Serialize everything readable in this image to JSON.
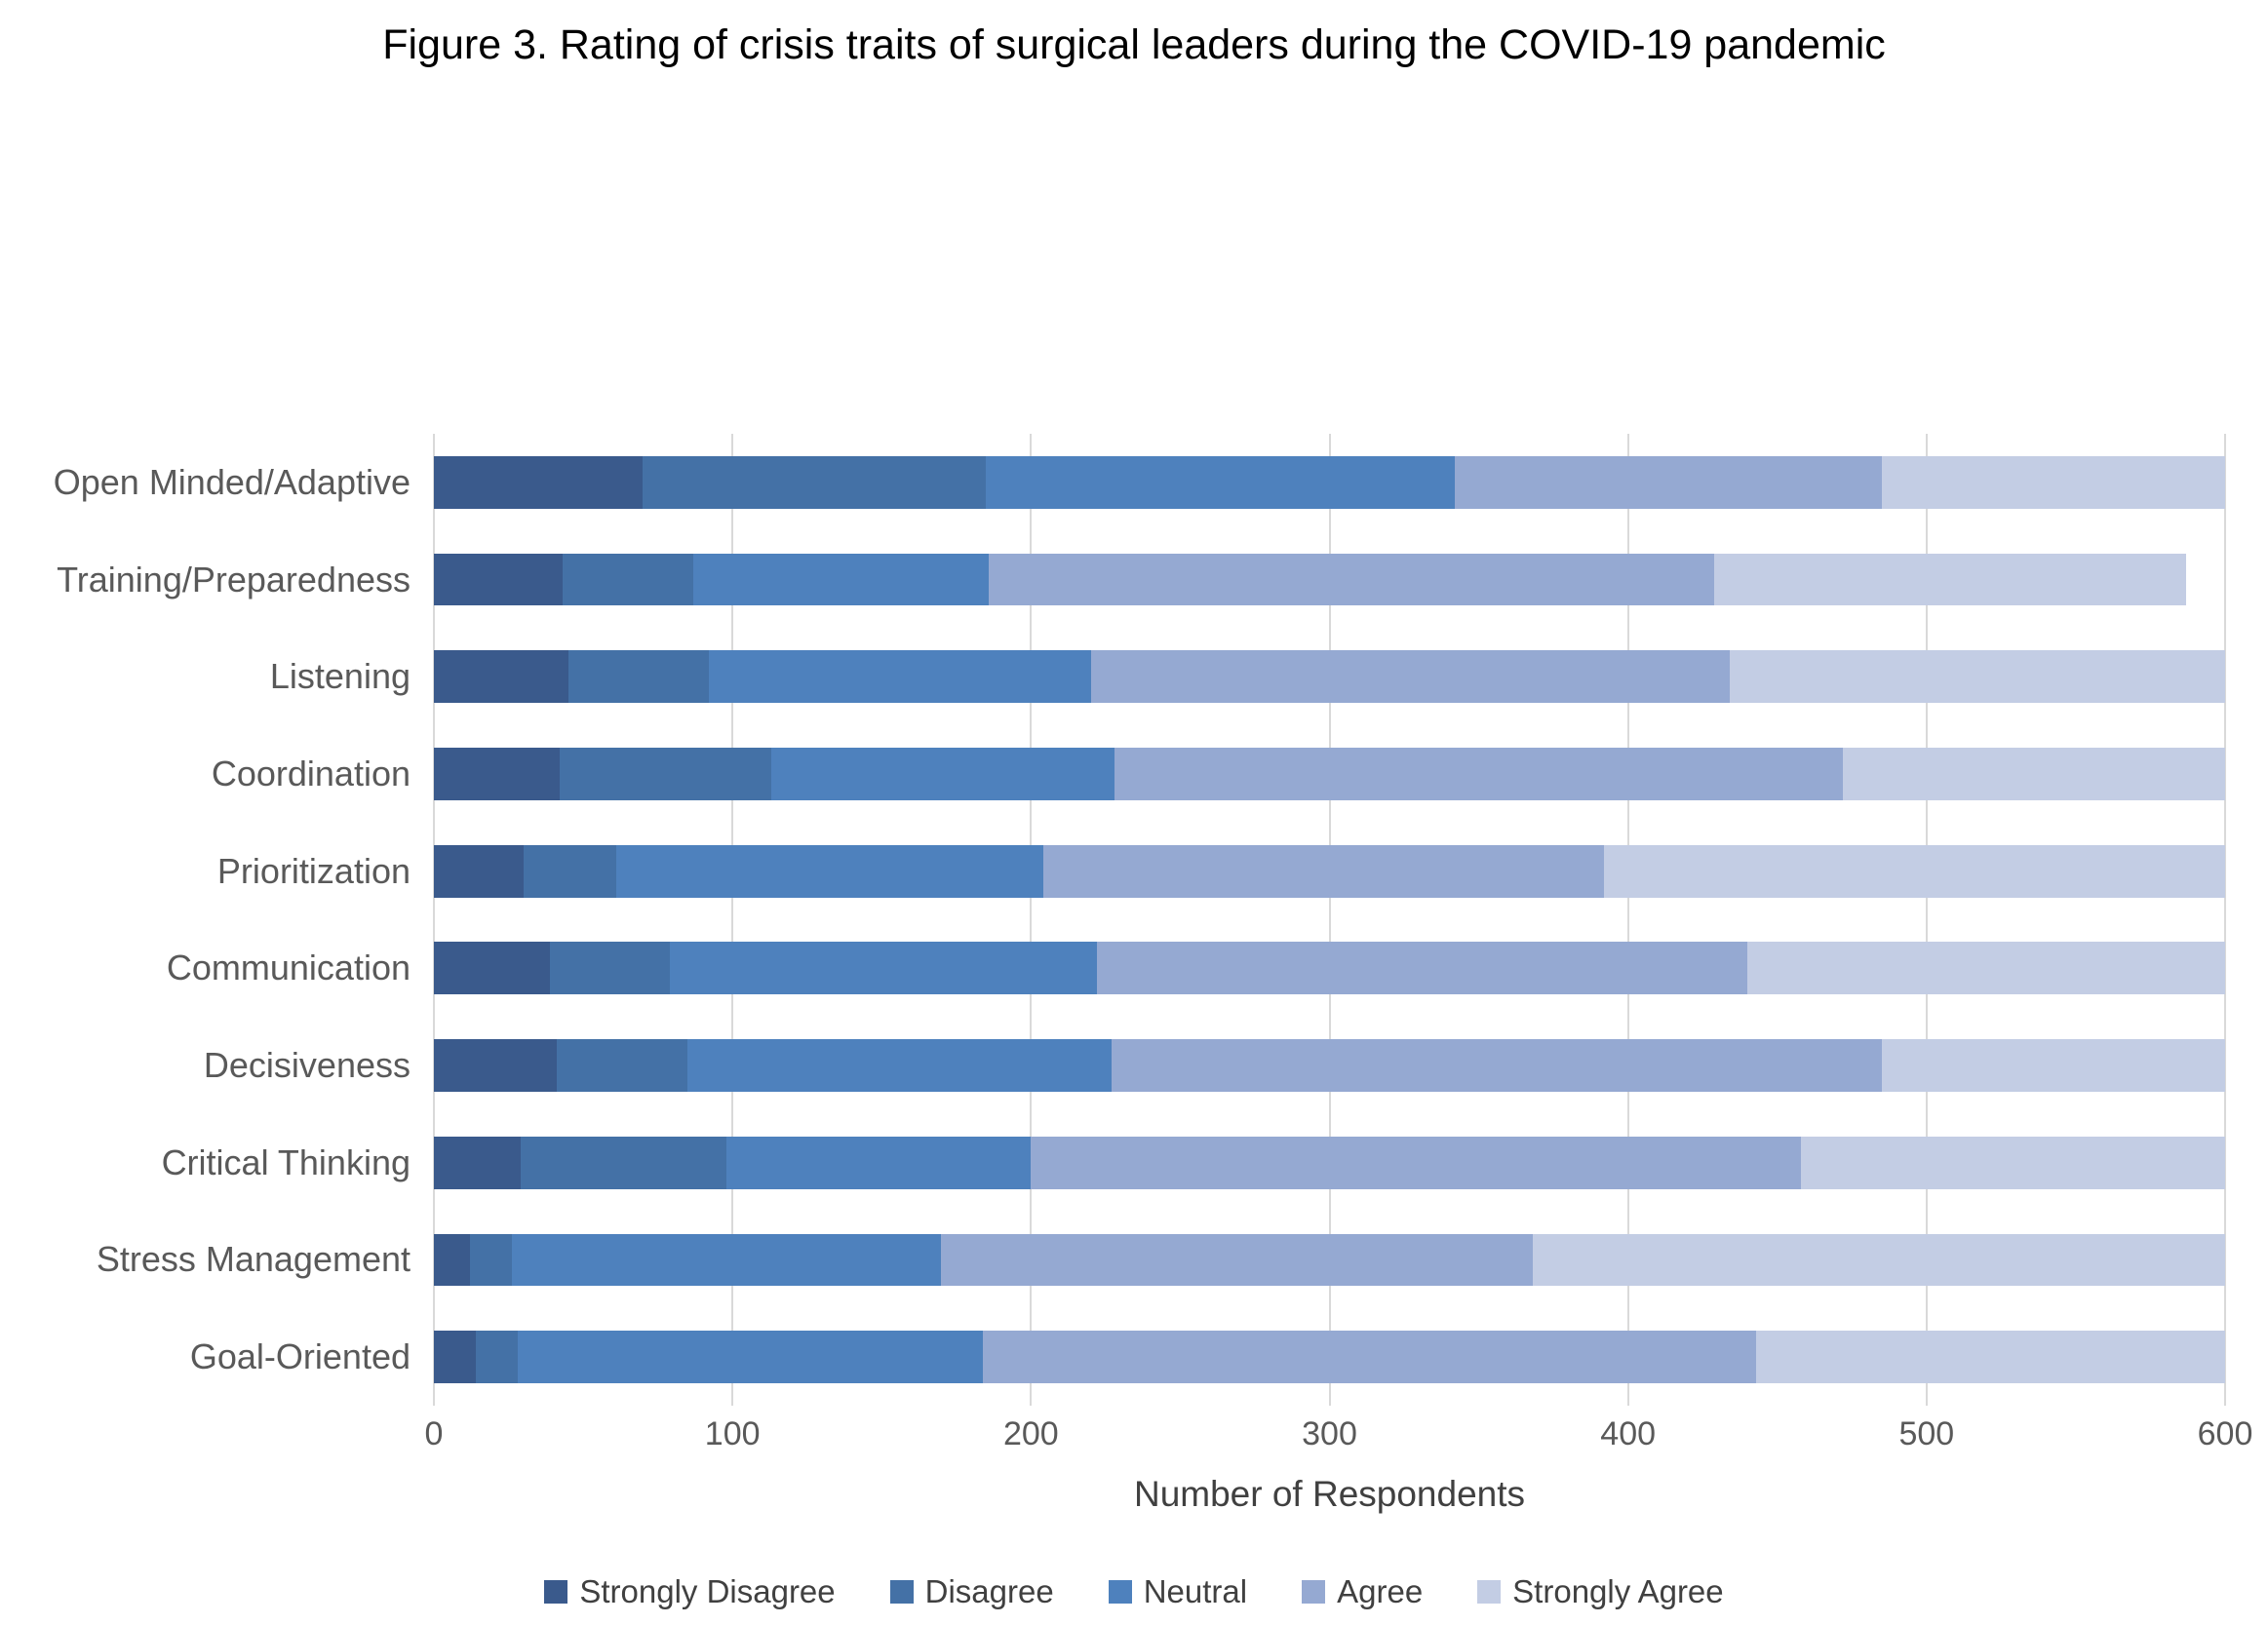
{
  "figure": {
    "title": "Figure 3. Rating of crisis traits of surgical leaders during the COVID-19 pandemic"
  },
  "chart_data": {
    "type": "bar",
    "orientation": "horizontal",
    "stacked": true,
    "title": "Figure 3. Rating of crisis traits of surgical leaders during the COVID-19 pandemic",
    "xlabel": "Number of Respondents",
    "ylabel": "",
    "xlim": [
      0,
      600
    ],
    "x_ticks": [
      0,
      100,
      200,
      300,
      400,
      500,
      600
    ],
    "grid": "vertical",
    "gridline_color": "#d9d9d9",
    "legend_position": "bottom",
    "categories": [
      "Open Minded/Adaptive",
      "Training/Preparedness",
      "Listening",
      "Coordination",
      "Prioritization",
      "Communication",
      "Decisiveness",
      "Critical Thinking",
      "Stress Management",
      "Goal-Oriented"
    ],
    "series": [
      {
        "name": "Strongly Disagree",
        "color": "#3a5a8c",
        "values": [
          70,
          43,
          45,
          42,
          30,
          39,
          41,
          29,
          12,
          14
        ]
      },
      {
        "name": "Disagree",
        "color": "#4471a6",
        "values": [
          115,
          44,
          47,
          71,
          31,
          40,
          44,
          69,
          14,
          14
        ]
      },
      {
        "name": "Neutral",
        "color": "#4e81bd",
        "values": [
          157,
          99,
          128,
          115,
          143,
          143,
          142,
          102,
          144,
          156
        ]
      },
      {
        "name": "Agree",
        "color": "#95a9d2",
        "values": [
          143,
          243,
          214,
          244,
          188,
          218,
          258,
          258,
          198,
          259
        ]
      },
      {
        "name": "Strongly Agree",
        "color": "#c3cde4",
        "values": [
          115,
          158,
          166,
          128,
          208,
          160,
          115,
          142,
          232,
          157
        ]
      }
    ]
  }
}
